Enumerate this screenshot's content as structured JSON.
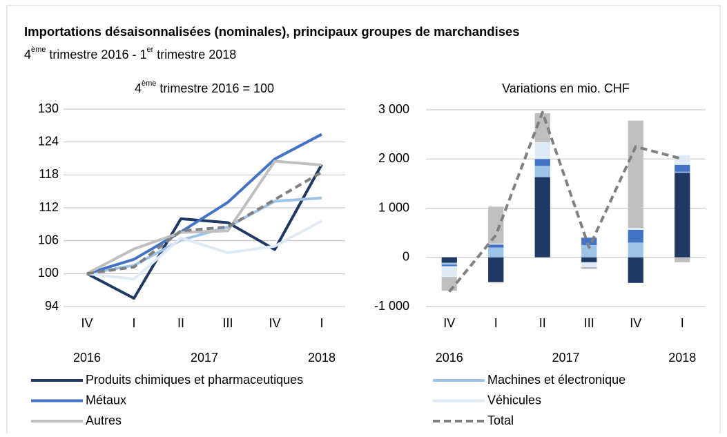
{
  "title": "Importations désaisonnalisées (nominales), principaux groupes de marchandises",
  "subtitle": [
    "4",
    "ème",
    " trimestre 2016  - 1",
    "er",
    " trimestre 2018"
  ],
  "chart_data": [
    {
      "type": "line",
      "subtitle": [
        "4",
        "ème",
        " trimestre 2016  = 100"
      ],
      "groups": [
        {
          "label": "2016",
          "categories": [
            "IV"
          ]
        },
        {
          "label": "2017",
          "categories": [
            "I",
            "II",
            "III",
            "IV"
          ]
        },
        {
          "label": "2018",
          "categories": [
            "I"
          ]
        }
      ],
      "ylim": [
        94,
        130
      ],
      "yticks": [
        94,
        100,
        106,
        112,
        118,
        124,
        130
      ],
      "grid": true,
      "series": [
        {
          "name": "Produits chimiques et pharmaceutiques",
          "color": "#1f3864",
          "values": [
            100,
            95.5,
            110,
            109.3,
            104.4,
            119.9
          ]
        },
        {
          "name": "Machines et électronique",
          "color": "#9dc3e6",
          "values": [
            100,
            101.5,
            106.1,
            108.5,
            113.2,
            113.8
          ]
        },
        {
          "name": "Métaux",
          "color": "#4472c4",
          "values": [
            100,
            102.6,
            107.6,
            113,
            120.9,
            125.4
          ]
        },
        {
          "name": "Véhicules",
          "color": "#deebf7",
          "values": [
            100,
            99,
            106.5,
            103.8,
            105,
            109.6
          ]
        },
        {
          "name": "Autres",
          "color": "#bfbfbf",
          "values": [
            100,
            104.5,
            107.5,
            107.8,
            120.5,
            119.8
          ]
        },
        {
          "name": "Total",
          "color": "#808080",
          "dash": true,
          "values": [
            100,
            101.2,
            107.8,
            108.5,
            113.5,
            118.5
          ]
        }
      ]
    },
    {
      "type": "bar",
      "stacked": true,
      "subtitle": [
        "Variations en mio. CHF"
      ],
      "groups": [
        {
          "label": "2016",
          "categories": [
            "IV"
          ]
        },
        {
          "label": "2017",
          "categories": [
            "I",
            "II",
            "III",
            "IV"
          ]
        },
        {
          "label": "2018",
          "categories": [
            "I"
          ]
        }
      ],
      "ylim": [
        -1000,
        3000
      ],
      "yticks": [
        {
          "value": -1000,
          "label": "-1 000"
        },
        0,
        {
          "value": 1000,
          "label": "1 000"
        },
        {
          "value": 2000,
          "label": "2 000"
        },
        {
          "value": 3000,
          "label": "3 000"
        }
      ],
      "grid": true,
      "series": [
        {
          "name": "Produits chimiques et pharmaceutiques",
          "color": "#1f3864",
          "values": [
            -110,
            -505,
            1630,
            -100,
            -520,
            1720
          ]
        },
        {
          "name": "Machines et électronique",
          "color": "#9dc3e6",
          "values": [
            -40,
            200,
            230,
            250,
            300,
            20
          ]
        },
        {
          "name": "Métaux",
          "color": "#4472c4",
          "values": [
            -30,
            60,
            140,
            150,
            260,
            140
          ]
        },
        {
          "name": "Véhicules",
          "color": "#deebf7",
          "values": [
            -220,
            20,
            340,
            -100,
            40,
            200
          ]
        },
        {
          "name": "Autres",
          "color": "#bfbfbf",
          "values": [
            -280,
            750,
            590,
            -40,
            2180,
            -100
          ]
        },
        {
          "name": "Total",
          "color": "#808080",
          "type": "line",
          "dash": true,
          "values": [
            -700,
            450,
            2950,
            200,
            2250,
            2000
          ]
        }
      ]
    }
  ]
}
